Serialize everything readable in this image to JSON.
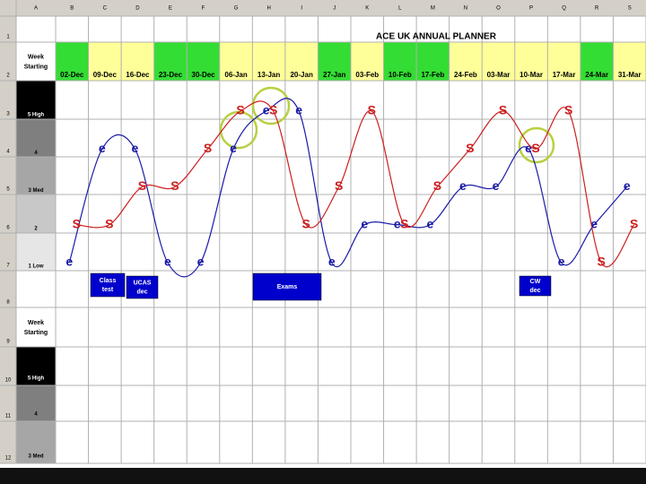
{
  "columns": [
    "A",
    "B",
    "C",
    "D",
    "E",
    "F",
    "G",
    "H",
    "I",
    "J",
    "K",
    "L",
    "M",
    "N",
    "O",
    "P",
    "Q",
    "R",
    "S"
  ],
  "rows": [
    "1",
    "2",
    "3",
    "4",
    "5",
    "6",
    "7",
    "8",
    "9",
    "10",
    "11",
    "12"
  ],
  "title": "ACE UK ANNUAL PLANNER",
  "week_label": "Week Starting",
  "chart_data": {
    "type": "line",
    "categories": [
      "02-Dec",
      "09-Dec",
      "16-Dec",
      "23-Dec",
      "30-Dec",
      "06-Jan",
      "13-Jan",
      "20-Jan",
      "27-Jan",
      "03-Feb",
      "10-Feb",
      "17-Feb",
      "24-Feb",
      "03-Mar",
      "10-Mar",
      "17-Mar",
      "24-Mar",
      "31-Mar"
    ],
    "header_colors": [
      "#33dd33",
      "#ffff99",
      "#ffff99",
      "#33dd33",
      "#33dd33",
      "#ffff99",
      "#ffff99",
      "#ffff99",
      "#33dd33",
      "#ffff99",
      "#33dd33",
      "#33dd33",
      "#ffff99",
      "#ffff99",
      "#ffff99",
      "#ffff99",
      "#33dd33",
      "#ffff99"
    ],
    "series": [
      {
        "name": "e",
        "color": "#1a1aa8",
        "values": [
          1,
          4,
          4,
          1,
          1,
          4,
          5,
          5,
          1,
          2,
          2,
          2,
          3,
          3,
          4,
          1,
          2,
          3
        ]
      },
      {
        "name": "S",
        "color": "#cc2020",
        "values": [
          2,
          2,
          3,
          3,
          4,
          5,
          5,
          2,
          3,
          5,
          2,
          3,
          4,
          5,
          4,
          5,
          1,
          2
        ]
      }
    ],
    "ylim": [
      1,
      5
    ],
    "yticks": [
      {
        "value": 5,
        "label": "5 High"
      },
      4,
      {
        "value": 3,
        "label": "3 Med"
      },
      2,
      {
        "value": 1,
        "label": "1 Low"
      }
    ]
  },
  "events": [
    "Class test",
    "UCAS dec",
    "Exams",
    "CW dec"
  ],
  "lower_block": {
    "week_label": "Week Starting",
    "levels": [
      "5 High",
      "4",
      "3 Med"
    ]
  }
}
